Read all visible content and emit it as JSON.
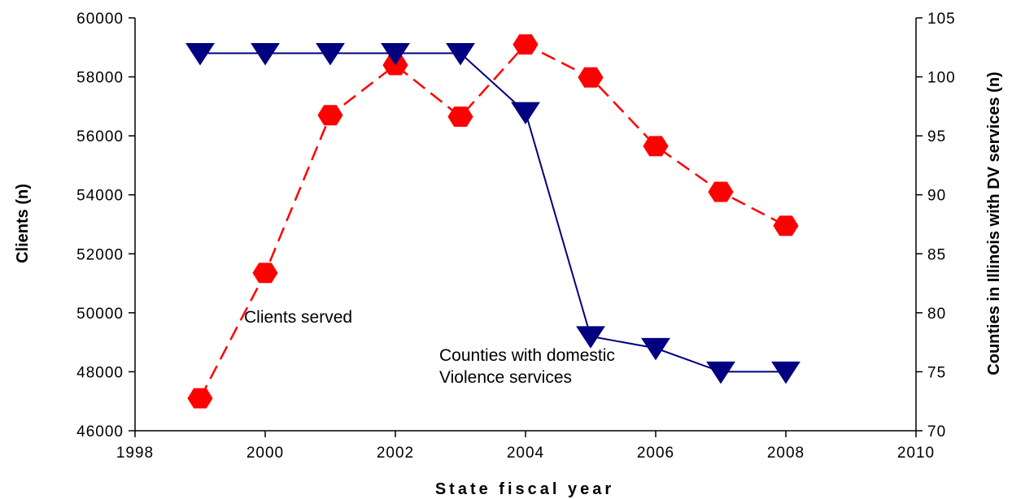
{
  "chart_data": {
    "type": "line",
    "xlabel": "State fiscal year",
    "ylabel_left": "Clients (n)",
    "ylabel_right": "Counties in Illinois with DV services (n)",
    "xlim": [
      1998,
      2010
    ],
    "x_ticks": [
      1998,
      2000,
      2002,
      2004,
      2006,
      2008,
      2010
    ],
    "ylim_left": [
      46000,
      60000
    ],
    "y_ticks_left": [
      46000,
      48000,
      50000,
      52000,
      54000,
      56000,
      58000,
      60000
    ],
    "ylim_right": [
      70,
      105
    ],
    "y_ticks_right": [
      70,
      75,
      80,
      85,
      90,
      95,
      100,
      105
    ],
    "grid": false,
    "series": [
      {
        "name": "Clients served",
        "axis": "left",
        "color": "#ff0000",
        "line_style": "dashed",
        "marker": "hexagon",
        "x": [
          1999,
          2000,
          2001,
          2002,
          2003,
          2004,
          2005,
          2006,
          2007,
          2008
        ],
        "values": [
          47100,
          51350,
          56700,
          58400,
          56650,
          59100,
          57980,
          55650,
          54100,
          52950
        ]
      },
      {
        "name": "Counties with domestic Violence services",
        "axis": "right",
        "color": "#000080",
        "line_style": "solid",
        "marker": "triangle-down",
        "x": [
          1999,
          2000,
          2001,
          2002,
          2003,
          2004,
          2005,
          2006,
          2007,
          2008
        ],
        "values": [
          102,
          102,
          102,
          102,
          102,
          97,
          78,
          77,
          75,
          75
        ]
      }
    ],
    "annotations": [
      {
        "id": "clients",
        "lines": [
          "Clients served"
        ]
      },
      {
        "id": "counties",
        "lines": [
          "Counties with domestic",
          "Violence services"
        ]
      }
    ]
  }
}
